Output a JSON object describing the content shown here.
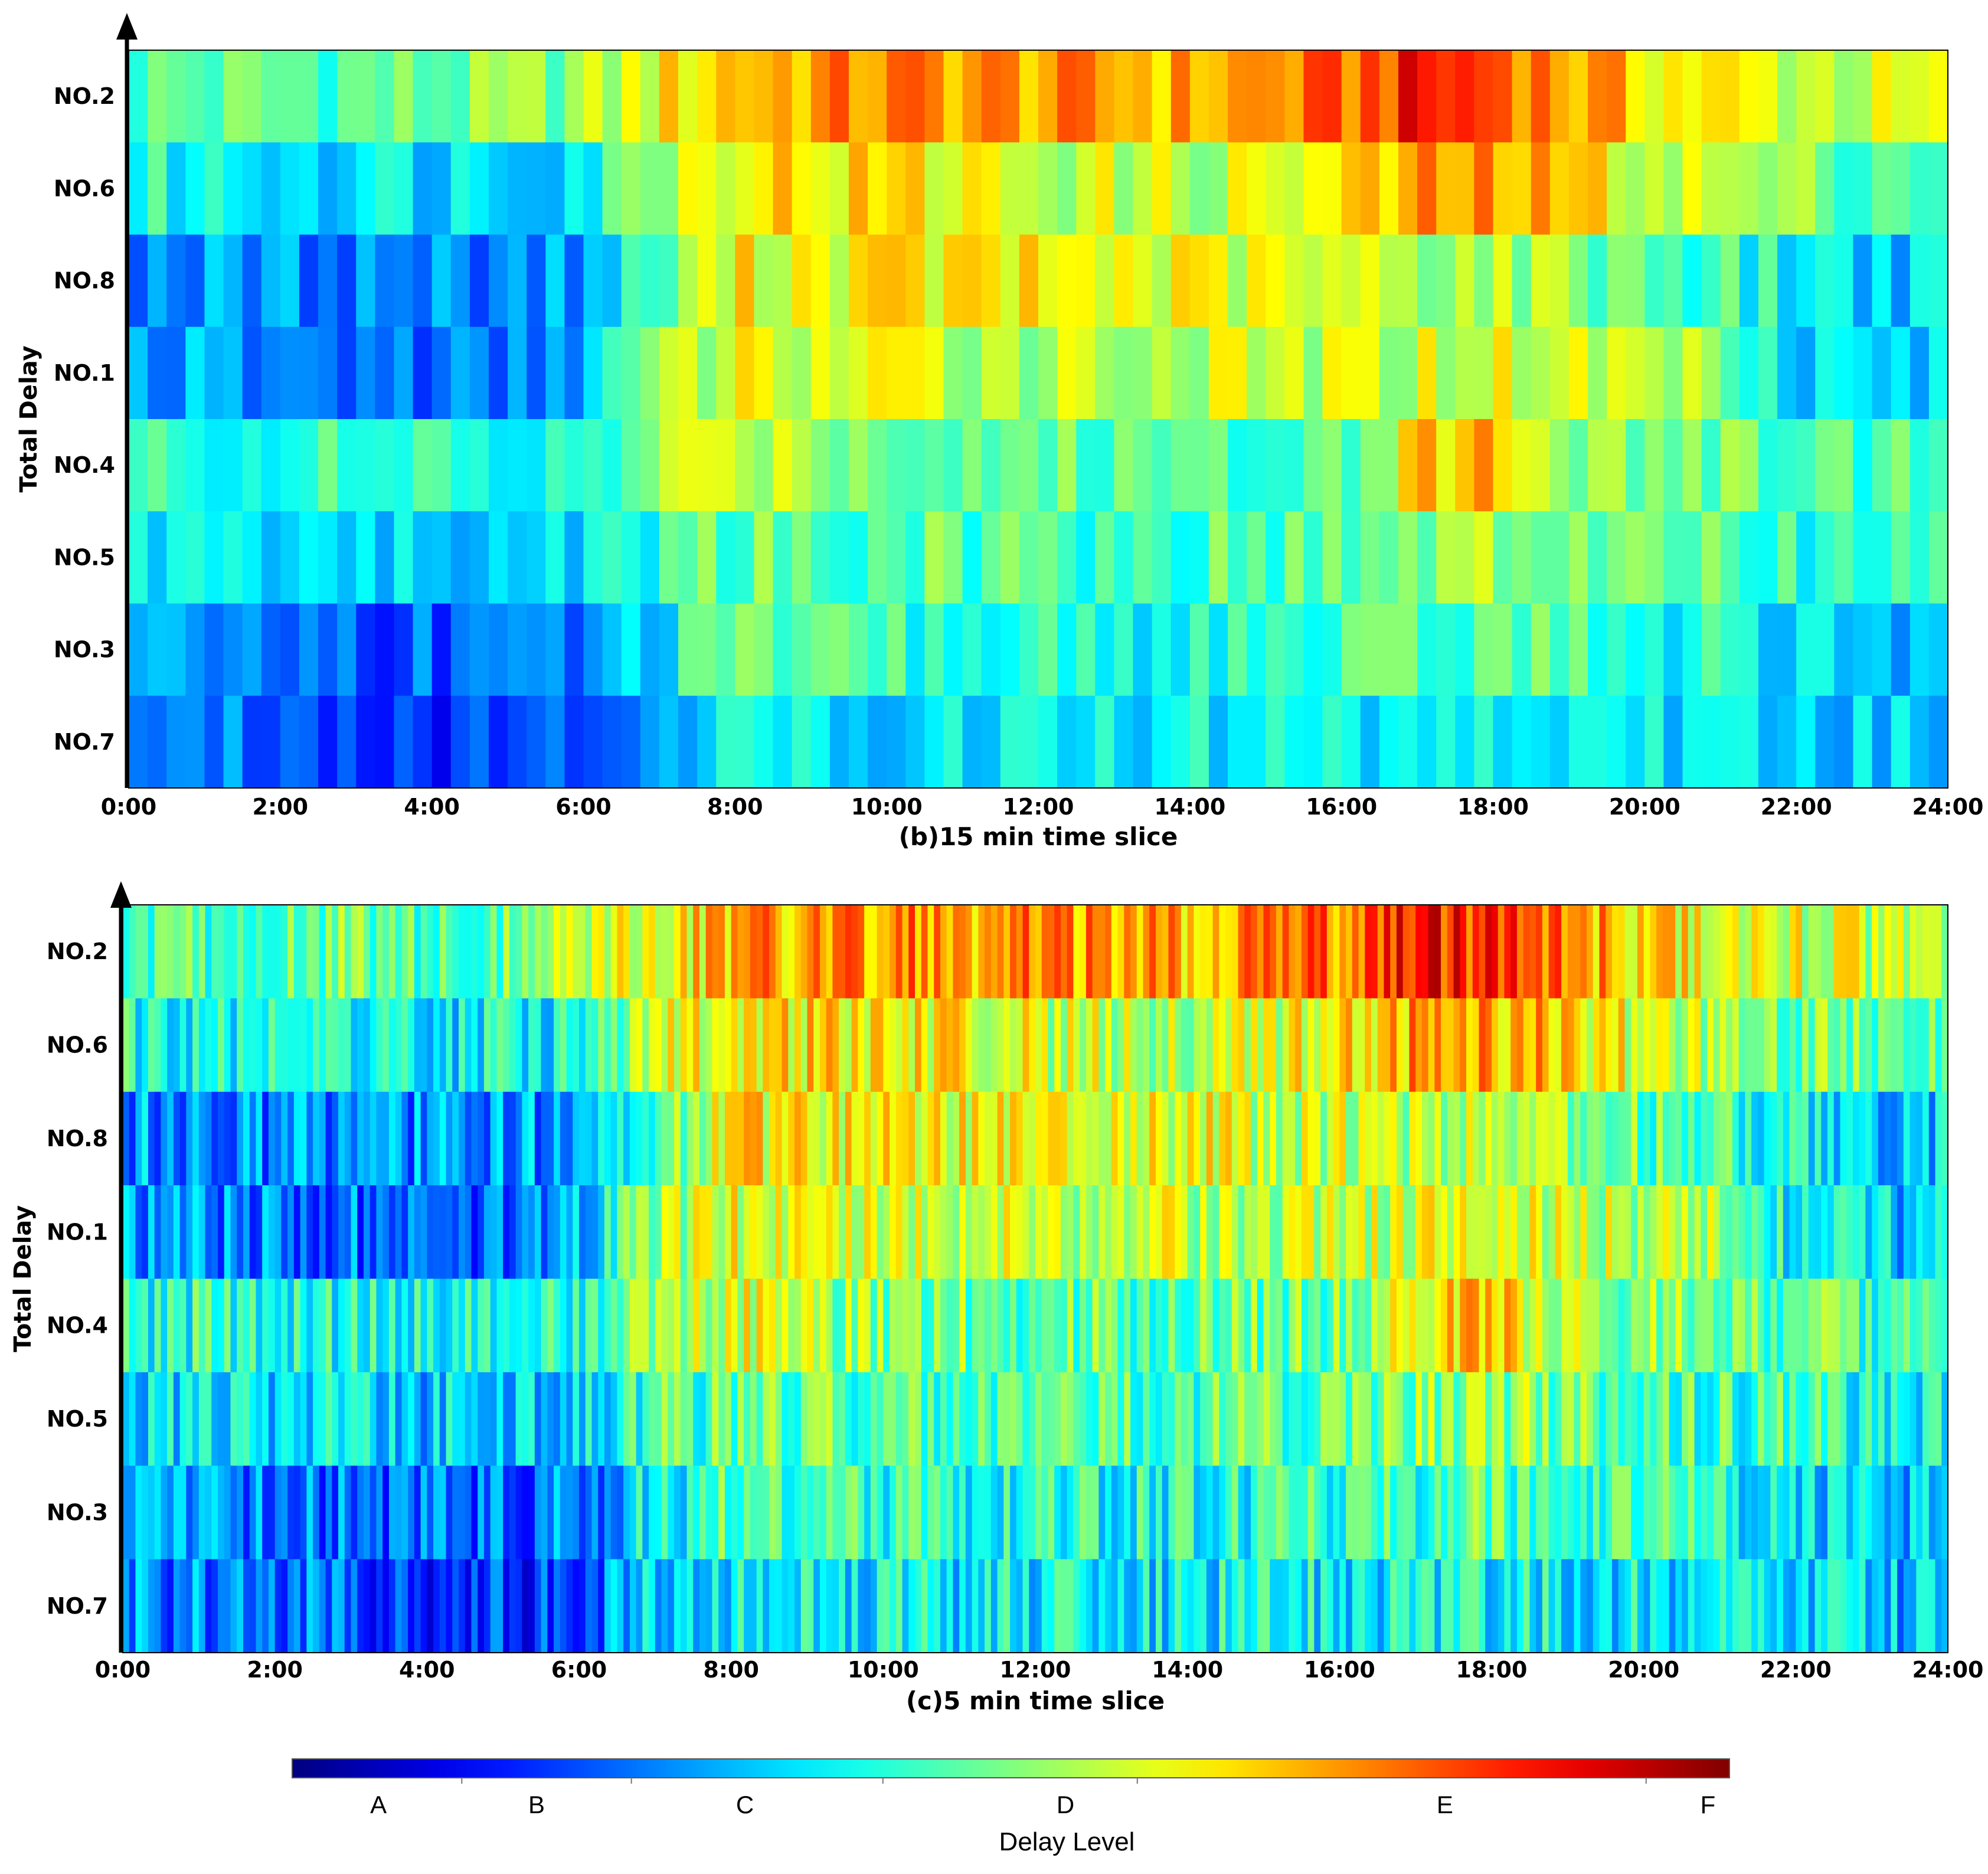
{
  "chart_data": [
    {
      "type": "heatmap",
      "panel": "b",
      "xlabel": "(b)15 min time slice",
      "ylabel": "Total Delay",
      "slice_minutes": 15,
      "x_ticks": [
        "0:00",
        "2:00",
        "4:00",
        "6:00",
        "8:00",
        "10:00",
        "12:00",
        "14:00",
        "16:00",
        "18:00",
        "20:00",
        "22:00",
        "24:00"
      ],
      "rows": [
        "NO.2",
        "NO.6",
        "NO.8",
        "NO.1",
        "NO.4",
        "NO.5",
        "NO.3",
        "NO.7"
      ],
      "profiles": {
        "NO.2": [
          [
            0,
            0.46
          ],
          [
            2,
            0.47
          ],
          [
            4,
            0.47
          ],
          [
            6,
            0.52
          ],
          [
            7,
            0.62
          ],
          [
            8,
            0.7
          ],
          [
            10,
            0.74
          ],
          [
            12,
            0.72
          ],
          [
            14,
            0.7
          ],
          [
            16,
            0.76
          ],
          [
            17,
            0.85
          ],
          [
            18,
            0.82
          ],
          [
            19,
            0.72
          ],
          [
            20,
            0.66
          ],
          [
            22,
            0.58
          ],
          [
            24,
            0.56
          ]
        ],
        "NO.6": [
          [
            0,
            0.4
          ],
          [
            2,
            0.37
          ],
          [
            4,
            0.36
          ],
          [
            6,
            0.38
          ],
          [
            7,
            0.56
          ],
          [
            8,
            0.66
          ],
          [
            10,
            0.64
          ],
          [
            12,
            0.58
          ],
          [
            14,
            0.56
          ],
          [
            16,
            0.62
          ],
          [
            17,
            0.7
          ],
          [
            18,
            0.72
          ],
          [
            20,
            0.6
          ],
          [
            22,
            0.5
          ],
          [
            24,
            0.46
          ]
        ],
        "NO.8": [
          [
            0,
            0.28
          ],
          [
            2,
            0.26
          ],
          [
            4,
            0.26
          ],
          [
            6,
            0.28
          ],
          [
            7,
            0.45
          ],
          [
            8,
            0.62
          ],
          [
            10,
            0.63
          ],
          [
            12,
            0.62
          ],
          [
            14,
            0.6
          ],
          [
            16,
            0.56
          ],
          [
            18,
            0.55
          ],
          [
            20,
            0.48
          ],
          [
            22,
            0.38
          ],
          [
            24,
            0.32
          ]
        ],
        "NO.1": [
          [
            0,
            0.3
          ],
          [
            2,
            0.24
          ],
          [
            4,
            0.24
          ],
          [
            5,
            0.22
          ],
          [
            6,
            0.33
          ],
          [
            7,
            0.5
          ],
          [
            8,
            0.6
          ],
          [
            10,
            0.58
          ],
          [
            12,
            0.56
          ],
          [
            14,
            0.56
          ],
          [
            16,
            0.56
          ],
          [
            18,
            0.6
          ],
          [
            20,
            0.56
          ],
          [
            21,
            0.54
          ],
          [
            22,
            0.36
          ],
          [
            24,
            0.32
          ]
        ],
        "NO.4": [
          [
            0,
            0.42
          ],
          [
            2,
            0.42
          ],
          [
            4,
            0.4
          ],
          [
            6,
            0.38
          ],
          [
            7,
            0.52
          ],
          [
            8,
            0.6
          ],
          [
            10,
            0.5
          ],
          [
            12,
            0.47
          ],
          [
            14,
            0.46
          ],
          [
            16,
            0.48
          ],
          [
            17,
            0.66
          ],
          [
            18,
            0.7
          ],
          [
            19,
            0.54
          ],
          [
            20,
            0.5
          ],
          [
            22,
            0.46
          ],
          [
            24,
            0.45
          ]
        ],
        "NO.5": [
          [
            0,
            0.37
          ],
          [
            2,
            0.36
          ],
          [
            4,
            0.32
          ],
          [
            6,
            0.36
          ],
          [
            7,
            0.44
          ],
          [
            8,
            0.47
          ],
          [
            10,
            0.47
          ],
          [
            12,
            0.45
          ],
          [
            14,
            0.45
          ],
          [
            16,
            0.47
          ],
          [
            18,
            0.52
          ],
          [
            20,
            0.47
          ],
          [
            22,
            0.42
          ],
          [
            24,
            0.4
          ]
        ],
        "NO.3": [
          [
            0,
            0.26
          ],
          [
            2,
            0.26
          ],
          [
            3,
            0.23
          ],
          [
            4,
            0.22
          ],
          [
            6,
            0.24
          ],
          [
            7,
            0.38
          ],
          [
            8,
            0.45
          ],
          [
            10,
            0.42
          ],
          [
            12,
            0.4
          ],
          [
            14,
            0.4
          ],
          [
            16,
            0.42
          ],
          [
            18,
            0.47
          ],
          [
            20,
            0.42
          ],
          [
            22,
            0.36
          ],
          [
            24,
            0.3
          ]
        ],
        "NO.7": [
          [
            0,
            0.26
          ],
          [
            2,
            0.25
          ],
          [
            3,
            0.2
          ],
          [
            4,
            0.19
          ],
          [
            5,
            0.18
          ],
          [
            6,
            0.21
          ],
          [
            7,
            0.34
          ],
          [
            8,
            0.36
          ],
          [
            10,
            0.36
          ],
          [
            12,
            0.37
          ],
          [
            14,
            0.37
          ],
          [
            16,
            0.38
          ],
          [
            18,
            0.38
          ],
          [
            20,
            0.36
          ],
          [
            22,
            0.34
          ],
          [
            24,
            0.3
          ]
        ]
      },
      "value_scale": "0 = level A start, 1 = level F end"
    },
    {
      "type": "heatmap",
      "panel": "c",
      "xlabel": "(c)5 min time slice",
      "ylabel": "Total Delay",
      "slice_minutes": 5,
      "x_ticks": [
        "0:00",
        "2:00",
        "4:00",
        "6:00",
        "8:00",
        "10:00",
        "12:00",
        "14:00",
        "16:00",
        "18:00",
        "20:00",
        "22:00",
        "24:00"
      ],
      "rows": [
        "NO.2",
        "NO.6",
        "NO.8",
        "NO.1",
        "NO.4",
        "NO.5",
        "NO.3",
        "NO.7"
      ],
      "uses_profiles_of": "b"
    }
  ],
  "colorbar": {
    "title": "Delay Level",
    "levels": [
      "A",
      "B",
      "C",
      "D",
      "E",
      "F"
    ],
    "level_positions": [
      0.06,
      0.17,
      0.315,
      0.538,
      0.802,
      0.985
    ],
    "separators": [
      0.118,
      0.236,
      0.411,
      0.588,
      0.942
    ],
    "colormap": "jet"
  },
  "colors": {
    "axis": "#000000",
    "background": "#ffffff"
  }
}
